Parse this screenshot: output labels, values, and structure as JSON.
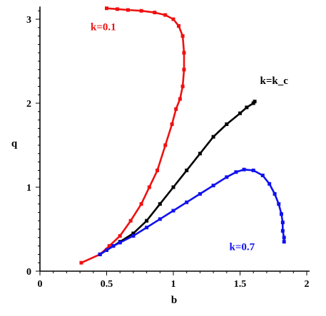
{
  "chart_data": {
    "type": "line",
    "title": "",
    "xlabel": "b",
    "ylabel": "q",
    "xlim": [
      0,
      2
    ],
    "ylim": [
      0,
      3.15
    ],
    "xticks": [
      "0",
      "0.5",
      "1",
      "1.5",
      "2"
    ],
    "yticks": [
      "0",
      "1",
      "2",
      "3"
    ],
    "grid": false,
    "series": [
      {
        "name": "k=0.1",
        "color": "#ee1111",
        "x": [
          0.31,
          0.45,
          0.52,
          0.6,
          0.68,
          0.76,
          0.82,
          0.88,
          0.94,
          0.99,
          1.02,
          1.05,
          1.07,
          1.08,
          1.08,
          1.07,
          1.04,
          1.0,
          0.94,
          0.86,
          0.76,
          0.66,
          0.58,
          0.5
        ],
        "y": [
          0.1,
          0.2,
          0.3,
          0.42,
          0.6,
          0.8,
          1.0,
          1.2,
          1.5,
          1.75,
          1.93,
          2.05,
          2.2,
          2.4,
          2.6,
          2.8,
          2.92,
          3.0,
          3.05,
          3.08,
          3.1,
          3.11,
          3.12,
          3.13
        ]
      },
      {
        "name": "k=k_c",
        "color": "#000000",
        "x": [
          0.45,
          0.5,
          0.55,
          0.6,
          0.7,
          0.8,
          0.9,
          1.0,
          1.1,
          1.2,
          1.3,
          1.4,
          1.5,
          1.55,
          1.6,
          1.61
        ],
        "y": [
          0.2,
          0.25,
          0.3,
          0.35,
          0.45,
          0.6,
          0.8,
          1.0,
          1.2,
          1.4,
          1.6,
          1.75,
          1.88,
          1.95,
          2.0,
          2.02
        ]
      },
      {
        "name": "k=0.7",
        "color": "#1111ee",
        "x": [
          0.45,
          0.5,
          0.55,
          0.6,
          0.7,
          0.8,
          0.9,
          1.0,
          1.1,
          1.2,
          1.3,
          1.4,
          1.47,
          1.53,
          1.6,
          1.67,
          1.72,
          1.76,
          1.79,
          1.81,
          1.82,
          1.82,
          1.83,
          1.83
        ],
        "y": [
          0.2,
          0.25,
          0.3,
          0.34,
          0.42,
          0.52,
          0.62,
          0.72,
          0.82,
          0.92,
          1.02,
          1.12,
          1.18,
          1.21,
          1.2,
          1.14,
          1.04,
          0.92,
          0.8,
          0.68,
          0.58,
          0.48,
          0.4,
          0.35
        ]
      }
    ],
    "annotations": [
      {
        "text": "k=0.1",
        "color": "#ee1111",
        "x": 0.38,
        "y": 2.87
      },
      {
        "text": "k=k_c",
        "color": "#000000",
        "x": 1.65,
        "y": 2.23
      },
      {
        "text": "k=0.7",
        "color": "#1111ee",
        "x": 1.42,
        "y": 0.25
      }
    ]
  }
}
